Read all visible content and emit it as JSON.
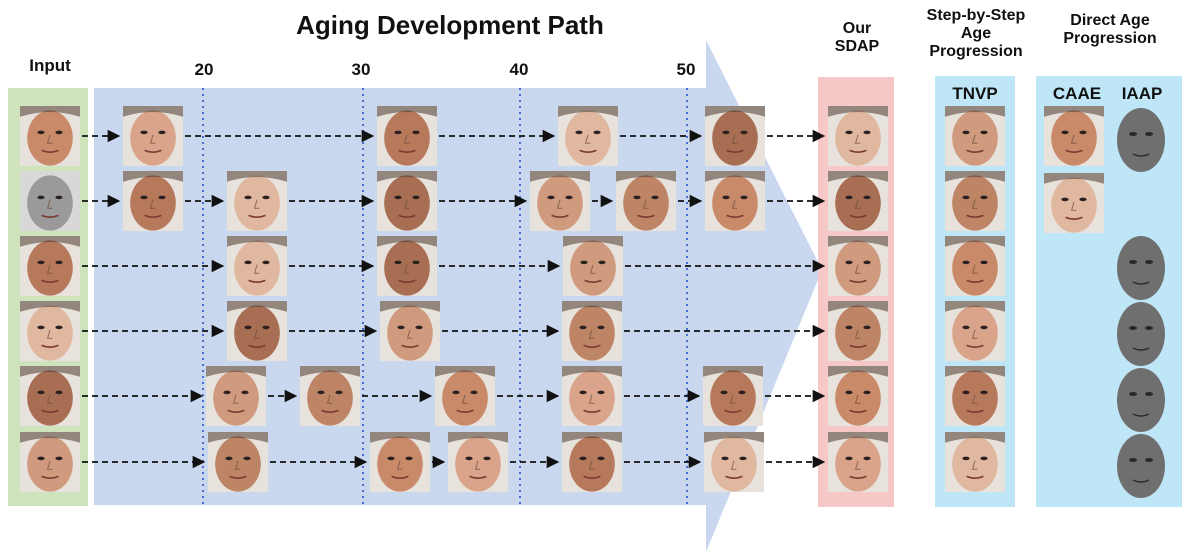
{
  "title": "Aging Development Path",
  "input_label": "Input",
  "ages": [
    "20",
    "30",
    "40",
    "50"
  ],
  "sdap_label": [
    "Our",
    "SDAP"
  ],
  "step_label": [
    "Step-by-Step",
    "Age",
    "Progression"
  ],
  "direct_label": [
    "Direct Age",
    "Progression"
  ],
  "tnvp_label": "TNVP",
  "caae_label": "CAAE",
  "iaap_label": "IAAP",
  "colors": {
    "path_blue": "#c9d8ef",
    "input_green": "#cfe4bd",
    "sdap_pink": "#f7c8c8",
    "method_cyan": "#bfe6f6",
    "age_line": "#4a6ed6",
    "arrow": "#111111"
  },
  "face_tones": [
    "#c98a6a",
    "#d9a48a",
    "#b7795c",
    "#e0b79f",
    "#a86e54",
    "#cf9a7e",
    "#bd8466"
  ]
}
